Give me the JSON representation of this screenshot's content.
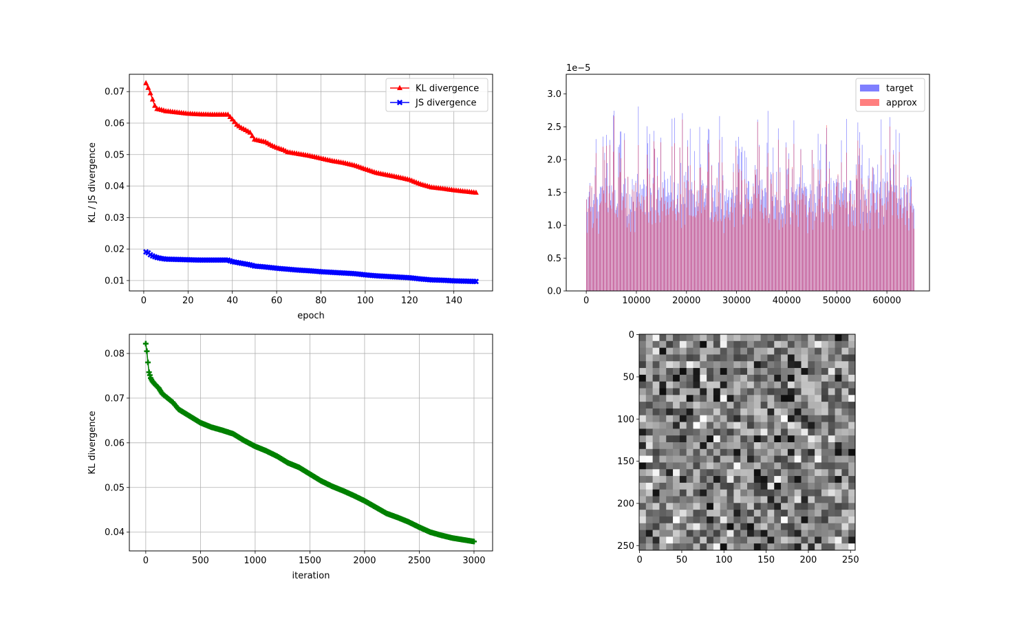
{
  "chart_data": [
    {
      "type": "line",
      "xlabel": "epoch",
      "ylabel": "KL / JS divergence",
      "xlim": [
        -6.5,
        157.5
      ],
      "ylim": [
        0.0067,
        0.0755
      ],
      "xticks": [
        0,
        20,
        40,
        60,
        80,
        100,
        120,
        140
      ],
      "yticks": [
        0.01,
        0.02,
        0.03,
        0.04,
        0.05,
        0.06,
        0.07
      ],
      "ytick_labels": [
        "0.01",
        "0.02",
        "0.03",
        "0.04",
        "0.05",
        "0.06",
        "0.07"
      ],
      "grid": true,
      "legend": "top-right",
      "series": [
        {
          "name": "KL divergence",
          "color": "#ff0000",
          "marker": "triangle",
          "points": [
            [
              1,
              0.0727
            ],
            [
              2,
              0.0712
            ],
            [
              3,
              0.0695
            ],
            [
              4,
              0.0675
            ],
            [
              5,
              0.0655
            ],
            [
              6,
              0.0645
            ],
            [
              8,
              0.0642
            ],
            [
              10,
              0.0638
            ],
            [
              15,
              0.0634
            ],
            [
              20,
              0.063
            ],
            [
              25,
              0.0628
            ],
            [
              30,
              0.0627
            ],
            [
              35,
              0.0627
            ],
            [
              38,
              0.0627
            ],
            [
              40,
              0.0612
            ],
            [
              42,
              0.0595
            ],
            [
              44,
              0.0585
            ],
            [
              46,
              0.0578
            ],
            [
              48,
              0.057
            ],
            [
              50,
              0.0548
            ],
            [
              55,
              0.054
            ],
            [
              58,
              0.0528
            ],
            [
              60,
              0.0522
            ],
            [
              63,
              0.0515
            ],
            [
              65,
              0.0508
            ],
            [
              70,
              0.0502
            ],
            [
              75,
              0.0496
            ],
            [
              80,
              0.0488
            ],
            [
              85,
              0.048
            ],
            [
              90,
              0.0474
            ],
            [
              95,
              0.0466
            ],
            [
              100,
              0.0454
            ],
            [
              105,
              0.0442
            ],
            [
              110,
              0.0435
            ],
            [
              115,
              0.0428
            ],
            [
              120,
              0.042
            ],
            [
              125,
              0.0406
            ],
            [
              130,
              0.0396
            ],
            [
              135,
              0.0392
            ],
            [
              140,
              0.0387
            ],
            [
              145,
              0.0383
            ],
            [
              150,
              0.0379
            ]
          ]
        },
        {
          "name": "JS divergence",
          "color": "#0000ff",
          "marker": "x",
          "points": [
            [
              1,
              0.0191
            ],
            [
              2,
              0.0188
            ],
            [
              3,
              0.0182
            ],
            [
              4,
              0.0178
            ],
            [
              6,
              0.0173
            ],
            [
              8,
              0.017
            ],
            [
              10,
              0.0168
            ],
            [
              15,
              0.0167
            ],
            [
              20,
              0.0166
            ],
            [
              25,
              0.0165
            ],
            [
              30,
              0.0165
            ],
            [
              35,
              0.0165
            ],
            [
              38,
              0.0165
            ],
            [
              40,
              0.016
            ],
            [
              44,
              0.0155
            ],
            [
              48,
              0.015
            ],
            [
              50,
              0.0146
            ],
            [
              55,
              0.0143
            ],
            [
              60,
              0.0139
            ],
            [
              65,
              0.0136
            ],
            [
              70,
              0.0133
            ],
            [
              75,
              0.0131
            ],
            [
              80,
              0.0128
            ],
            [
              85,
              0.0126
            ],
            [
              90,
              0.0124
            ],
            [
              95,
              0.0122
            ],
            [
              100,
              0.0118
            ],
            [
              105,
              0.0115
            ],
            [
              110,
              0.0113
            ],
            [
              115,
              0.0111
            ],
            [
              120,
              0.0109
            ],
            [
              125,
              0.0105
            ],
            [
              130,
              0.0102
            ],
            [
              135,
              0.0101
            ],
            [
              140,
              0.0099
            ],
            [
              145,
              0.0098
            ],
            [
              150,
              0.0097
            ]
          ]
        }
      ]
    },
    {
      "type": "bar",
      "offset_label": "1e−5",
      "xlim": [
        -4000,
        68500
      ],
      "ylim": [
        0,
        3.3
      ],
      "xticks": [
        0,
        10000,
        20000,
        30000,
        40000,
        50000,
        60000
      ],
      "yticks": [
        0.0,
        0.5,
        1.0,
        1.5,
        2.0,
        2.5,
        3.0
      ],
      "ytick_labels": [
        "0.0",
        "0.5",
        "1.0",
        "1.5",
        "2.0",
        "2.5",
        "3.0"
      ],
      "x_range": [
        0,
        65536
      ],
      "bar_count": 380,
      "random_seed": 7,
      "grid": false,
      "legend": "top-right",
      "series": [
        {
          "name": "target",
          "color": "#0000ff",
          "alpha": 0.5
        },
        {
          "name": "approx",
          "color": "#ff0000",
          "alpha": 0.5
        }
      ]
    },
    {
      "type": "line",
      "xlabel": "iteration",
      "ylabel": "KL divergence",
      "xlim": [
        -150,
        3170
      ],
      "ylim": [
        0.0358,
        0.0843
      ],
      "xticks": [
        0,
        500,
        1000,
        1500,
        2000,
        2500,
        3000
      ],
      "yticks": [
        0.04,
        0.05,
        0.06,
        0.07,
        0.08
      ],
      "ytick_labels": [
        "0.04",
        "0.05",
        "0.06",
        "0.07",
        "0.08"
      ],
      "grid": true,
      "series": [
        {
          "color": "#008000",
          "marker": "plus",
          "points": [
            [
              0,
              0.0822
            ],
            [
              10,
              0.0805
            ],
            [
              20,
              0.078
            ],
            [
              30,
              0.0758
            ],
            [
              45,
              0.0745
            ],
            [
              60,
              0.0738
            ],
            [
              80,
              0.0732
            ],
            [
              120,
              0.0722
            ],
            [
              150,
              0.071
            ],
            [
              200,
              0.07
            ],
            [
              250,
              0.069
            ],
            [
              300,
              0.0675
            ],
            [
              400,
              0.066
            ],
            [
              500,
              0.0645
            ],
            [
              600,
              0.0635
            ],
            [
              700,
              0.0628
            ],
            [
              800,
              0.062
            ],
            [
              900,
              0.0605
            ],
            [
              1000,
              0.0592
            ],
            [
              1100,
              0.0582
            ],
            [
              1200,
              0.057
            ],
            [
              1300,
              0.0555
            ],
            [
              1400,
              0.0545
            ],
            [
              1500,
              0.053
            ],
            [
              1600,
              0.0515
            ],
            [
              1700,
              0.0503
            ],
            [
              1800,
              0.0493
            ],
            [
              1900,
              0.0482
            ],
            [
              2000,
              0.047
            ],
            [
              2100,
              0.0456
            ],
            [
              2200,
              0.0442
            ],
            [
              2300,
              0.0433
            ],
            [
              2400,
              0.0423
            ],
            [
              2500,
              0.0411
            ],
            [
              2600,
              0.04
            ],
            [
              2700,
              0.0393
            ],
            [
              2800,
              0.0387
            ],
            [
              2900,
              0.0383
            ],
            [
              3000,
              0.0379
            ]
          ]
        }
      ]
    },
    {
      "type": "heatmap",
      "colormap": "gray",
      "size": [
        256,
        256
      ],
      "xticks": [
        0,
        50,
        100,
        150,
        200,
        250
      ],
      "yticks": [
        0,
        50,
        100,
        150,
        200,
        250
      ],
      "block_size": 8,
      "random_seed": 3
    }
  ]
}
